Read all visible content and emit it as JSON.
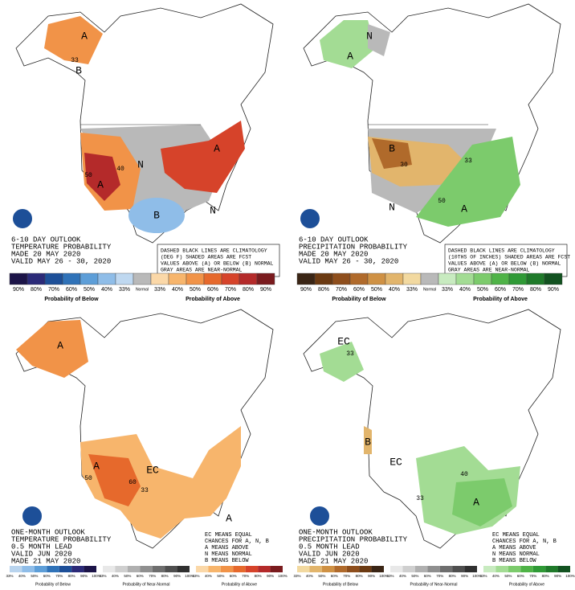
{
  "panels": [
    {
      "header": [
        "6-10 DAY OUTLOOK",
        "TEMPERATURE PROBABILITY",
        "MADE 20 MAY 2020",
        "VALID MAY 26 - 30, 2020"
      ],
      "note": [
        "DASHED BLACK LINES ARE CLIMATOLOGY",
        "(DEG F) SHADED AREAS ARE FCST",
        "VALUES ABOVE (A) OR BELOW (B) NORMAL",
        "GRAY AREAS ARE NEAR-NORMAL"
      ],
      "map_labels": [
        "A",
        "B",
        "A",
        "N",
        "A",
        "B",
        "N",
        "33",
        "40",
        "50"
      ],
      "legend": {
        "items": [
          {
            "label": "90%",
            "color": "#1c1448"
          },
          {
            "label": "80%",
            "color": "#2b2a78"
          },
          {
            "label": "70%",
            "color": "#1d4f98"
          },
          {
            "label": "60%",
            "color": "#2f72b8"
          },
          {
            "label": "50%",
            "color": "#5d9ed8"
          },
          {
            "label": "40%",
            "color": "#8fbde8"
          },
          {
            "label": "33%",
            "color": "#bfd8f0"
          },
          {
            "label": "Normal",
            "color": "#b9b9b9"
          },
          {
            "label": "33%",
            "color": "#fbd8a8"
          },
          {
            "label": "40%",
            "color": "#f7b56c"
          },
          {
            "label": "50%",
            "color": "#f19348"
          },
          {
            "label": "60%",
            "color": "#e6692c"
          },
          {
            "label": "70%",
            "color": "#d6432a"
          },
          {
            "label": "80%",
            "color": "#b42a2a"
          },
          {
            "label": "90%",
            "color": "#7a1b1e"
          }
        ],
        "captions": [
          "Probability of Below",
          "Probability of Above"
        ]
      }
    },
    {
      "header": [
        "6-10 DAY OUTLOOK",
        "PRECIPITATION PROBABILITY",
        "MADE 20 MAY 2020",
        "VALID MAY 26 - 30, 2020"
      ],
      "note": [
        "DASHED BLACK LINES ARE CLIMATOLOGY",
        "(10THS OF INCHES) SHADED AREAS ARE FCST",
        "VALUES ABOVE (A) OR BELOW (B) NORMAL",
        "GRAY AREAS ARE NEAR-NORMAL"
      ],
      "map_labels": [
        "N",
        "A",
        "B",
        "N",
        "A",
        "30",
        "50",
        "33"
      ],
      "legend": {
        "items": [
          {
            "label": "90%",
            "color": "#3a2515"
          },
          {
            "label": "80%",
            "color": "#6b3a12"
          },
          {
            "label": "70%",
            "color": "#8e4e1c"
          },
          {
            "label": "60%",
            "color": "#b06a2b"
          },
          {
            "label": "50%",
            "color": "#cf9144"
          },
          {
            "label": "40%",
            "color": "#e2b56c"
          },
          {
            "label": "33%",
            "color": "#f2d9a0"
          },
          {
            "label": "Normal",
            "color": "#b9b9b9"
          },
          {
            "label": "33%",
            "color": "#c8ebc0"
          },
          {
            "label": "40%",
            "color": "#a3dc94"
          },
          {
            "label": "50%",
            "color": "#7ccb6c"
          },
          {
            "label": "60%",
            "color": "#4fb347"
          },
          {
            "label": "70%",
            "color": "#2f9a36"
          },
          {
            "label": "80%",
            "color": "#1f7a2a"
          },
          {
            "label": "90%",
            "color": "#125220"
          }
        ],
        "captions": [
          "Probability of Below",
          "Probability of Above"
        ]
      }
    },
    {
      "header": [
        "ONE-MONTH OUTLOOK",
        "TEMPERATURE PROBABILITY",
        "0.5 MONTH LEAD",
        "VALID JUN 2020",
        "MADE 21 MAY 2020"
      ],
      "note": [
        "EC MEANS EQUAL",
        "CHANCES FOR A, N, B",
        "A MEANS ABOVE",
        "N MEANS NORMAL",
        "B MEANS BELOW"
      ],
      "map_labels": [
        "A",
        "A",
        "EC",
        "A",
        "50",
        "60",
        "33"
      ],
      "groups": [
        {
          "caption": "Probability of Below",
          "labels": [
            "33%",
            "40%",
            "50%",
            "60%",
            "70%",
            "80%",
            "90%",
            "100%"
          ],
          "colors": [
            "#b9d4ee",
            "#8fbde8",
            "#5d9ed8",
            "#2f72b8",
            "#1d4f98",
            "#2b2a78",
            "#1c1448"
          ]
        },
        {
          "caption": "Probability of Near-Normal",
          "labels": [
            "33%",
            "40%",
            "50%",
            "60%",
            "70%",
            "80%",
            "90%",
            "100%"
          ],
          "colors": [
            "#e8e8e8",
            "#cfcfcf",
            "#b0b0b0",
            "#8f8f8f",
            "#6e6e6e",
            "#4f4f4f",
            "#303030"
          ]
        },
        {
          "caption": "Probability of Above",
          "labels": [
            "33%",
            "40%",
            "50%",
            "60%",
            "70%",
            "80%",
            "90%",
            "100%"
          ],
          "colors": [
            "#fbd8a8",
            "#f7b56c",
            "#f19348",
            "#e6692c",
            "#d6432a",
            "#b42a2a",
            "#7a1b1e"
          ]
        }
      ]
    },
    {
      "header": [
        "ONE-MONTH OUTLOOK",
        "PRECIPITATION PROBABILITY",
        "0.5 MONTH LEAD",
        "VALID JUN 2020",
        "MADE 21 MAY 2020"
      ],
      "note": [
        "EC MEANS EQUAL",
        "CHANCES FOR A, N, B",
        "A MEANS ABOVE",
        "N MEANS NORMAL",
        "B MEANS BELOW"
      ],
      "map_labels": [
        "EC",
        "33",
        "B",
        "EC",
        "A",
        "40",
        "33"
      ],
      "groups": [
        {
          "caption": "Probability of Below",
          "labels": [
            "33%",
            "40%",
            "50%",
            "60%",
            "70%",
            "80%",
            "90%",
            "100%"
          ],
          "colors": [
            "#f2d9a0",
            "#e2b56c",
            "#cf9144",
            "#b06a2b",
            "#8e4e1c",
            "#6b3a12",
            "#3a2515"
          ]
        },
        {
          "caption": "Probability of Near-Normal",
          "labels": [
            "33%",
            "40%",
            "50%",
            "60%",
            "70%",
            "80%",
            "90%",
            "100%"
          ],
          "colors": [
            "#e8e8e8",
            "#cfcfcf",
            "#b0b0b0",
            "#8f8f8f",
            "#6e6e6e",
            "#4f4f4f",
            "#303030"
          ]
        },
        {
          "caption": "Probability of Above",
          "labels": [
            "33%",
            "40%",
            "50%",
            "60%",
            "70%",
            "80%",
            "90%",
            "100%"
          ],
          "colors": [
            "#c8ebc0",
            "#a3dc94",
            "#7ccb6c",
            "#4fb347",
            "#2f9a36",
            "#1f7a2a",
            "#125220"
          ]
        }
      ]
    }
  ]
}
